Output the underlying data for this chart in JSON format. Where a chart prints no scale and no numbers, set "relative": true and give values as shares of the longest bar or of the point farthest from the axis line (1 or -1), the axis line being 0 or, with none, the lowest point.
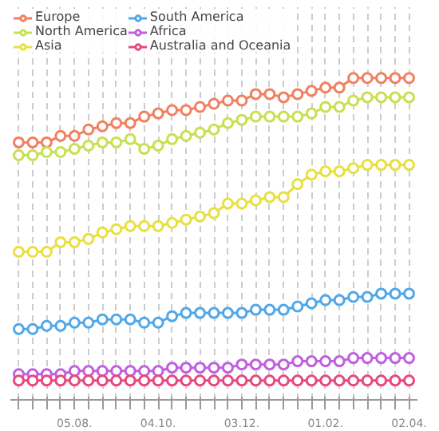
{
  "chart_data": {
    "type": "line",
    "relative": true,
    "marker": "circle",
    "line_style": "solid",
    "grid": "x",
    "legend": "top",
    "categories": [
      null,
      null,
      null,
      null,
      "05.08.",
      null,
      null,
      null,
      null,
      null,
      "04.10.",
      null,
      null,
      null,
      null,
      null,
      "03.12.",
      null,
      null,
      null,
      null,
      null,
      "01.02.",
      null,
      null,
      null,
      null,
      null,
      "02.04."
    ],
    "series": [
      {
        "name": "Europe",
        "color": "#f08060",
        "values": [
          0.8,
          0.8,
          0.8,
          0.82,
          0.82,
          0.84,
          0.85,
          0.86,
          0.86,
          0.88,
          0.89,
          0.9,
          0.9,
          0.91,
          0.92,
          0.93,
          0.93,
          0.95,
          0.95,
          0.94,
          0.95,
          0.96,
          0.97,
          0.97,
          1.0,
          1.0,
          1.0,
          1.0,
          1.0
        ]
      },
      {
        "name": "North America",
        "color": "#c8e050",
        "values": [
          0.76,
          0.76,
          0.77,
          0.77,
          0.78,
          0.79,
          0.8,
          0.8,
          0.81,
          0.78,
          0.79,
          0.81,
          0.82,
          0.83,
          0.84,
          0.86,
          0.87,
          0.88,
          0.88,
          0.88,
          0.88,
          0.89,
          0.91,
          0.91,
          0.93,
          0.94,
          0.94,
          0.94,
          0.94
        ]
      },
      {
        "name": "Asia",
        "color": "#e8e040",
        "values": [
          0.46,
          0.46,
          0.46,
          0.49,
          0.49,
          0.5,
          0.52,
          0.53,
          0.54,
          0.54,
          0.54,
          0.55,
          0.56,
          0.57,
          0.58,
          0.61,
          0.61,
          0.62,
          0.63,
          0.63,
          0.67,
          0.7,
          0.71,
          0.71,
          0.72,
          0.73,
          0.73,
          0.73,
          0.73
        ]
      },
      {
        "name": "South America",
        "color": "#50a8e8",
        "values": [
          0.22,
          0.22,
          0.23,
          0.23,
          0.24,
          0.24,
          0.25,
          0.25,
          0.25,
          0.24,
          0.24,
          0.26,
          0.27,
          0.27,
          0.27,
          0.27,
          0.27,
          0.28,
          0.28,
          0.28,
          0.29,
          0.3,
          0.31,
          0.31,
          0.32,
          0.32,
          0.33,
          0.33,
          0.33
        ]
      },
      {
        "name": "Africa",
        "color": "#c060e0",
        "values": [
          0.08,
          0.08,
          0.08,
          0.08,
          0.09,
          0.09,
          0.09,
          0.09,
          0.09,
          0.09,
          0.09,
          0.1,
          0.1,
          0.1,
          0.1,
          0.1,
          0.11,
          0.11,
          0.11,
          0.11,
          0.12,
          0.12,
          0.12,
          0.12,
          0.13,
          0.13,
          0.13,
          0.13,
          0.13
        ]
      },
      {
        "name": "Australia and Oceania",
        "color": "#e84880",
        "values": [
          0.06,
          0.06,
          0.06,
          0.06,
          0.06,
          0.06,
          0.06,
          0.06,
          0.06,
          0.06,
          0.06,
          0.06,
          0.06,
          0.06,
          0.06,
          0.06,
          0.06,
          0.06,
          0.06,
          0.06,
          0.06,
          0.06,
          0.06,
          0.06,
          0.06,
          0.06,
          0.06,
          0.06,
          0.06
        ]
      }
    ]
  }
}
